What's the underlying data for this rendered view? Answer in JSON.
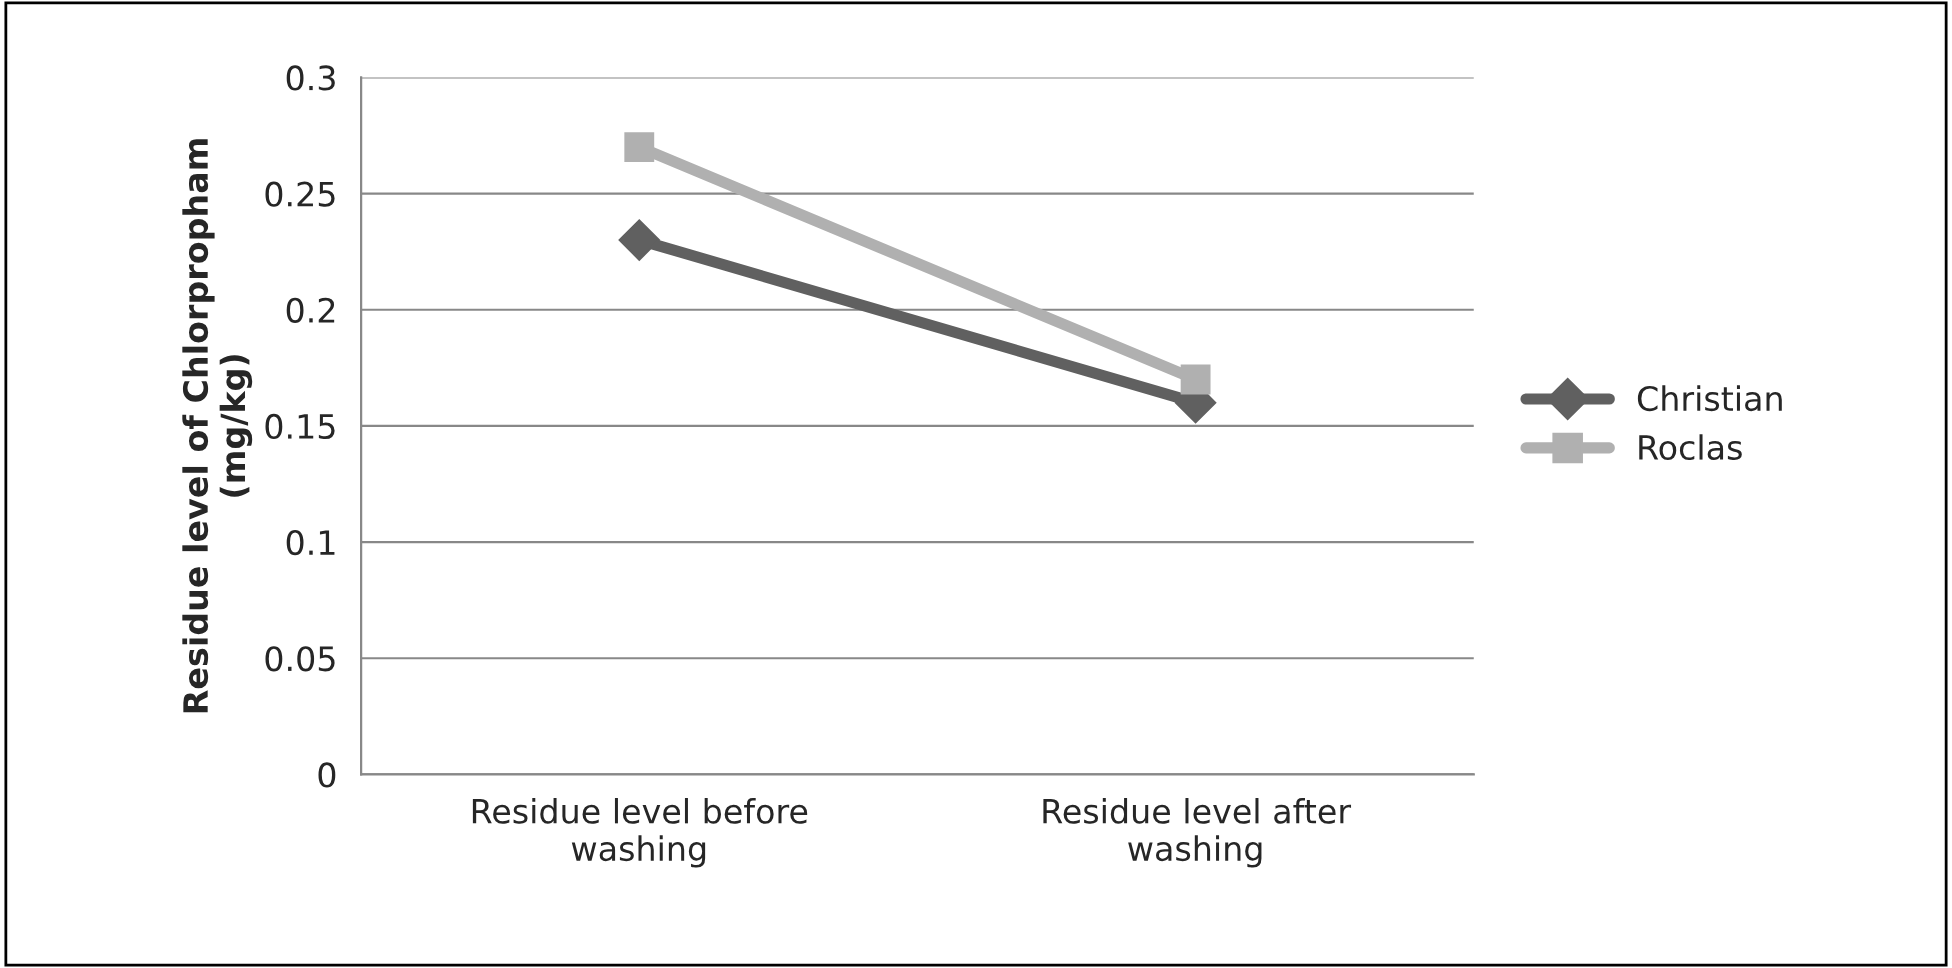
{
  "chart_data": {
    "type": "line",
    "ylabel": "Residue level of Chlorpropham\n(mg/kg)",
    "categories": [
      "Residue level before\nwashing",
      "Residue level after\nwashing"
    ],
    "series": [
      {
        "name": "Christian",
        "color": "#606060",
        "values": [
          0.23,
          0.16
        ],
        "marker": "diamond"
      },
      {
        "name": "Roclas",
        "color": "#b0b0b0",
        "values": [
          0.27,
          0.17
        ],
        "marker": "square"
      }
    ],
    "ylim": [
      0,
      0.3
    ],
    "yticks": [
      0,
      0.05,
      0.1,
      0.15,
      0.2,
      0.25,
      0.3
    ],
    "grid": "y",
    "legend": "right",
    "line_style": "solid"
  }
}
